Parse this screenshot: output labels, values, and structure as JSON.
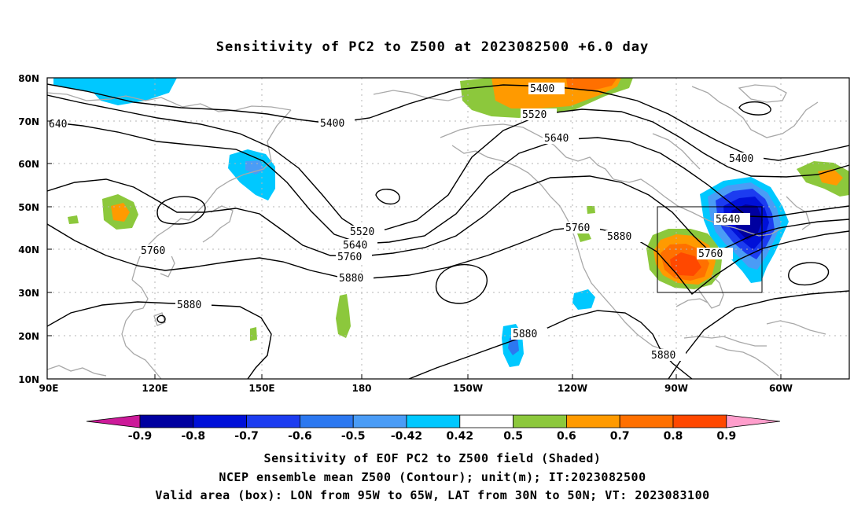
{
  "title": "Sensitivity of PC2 to Z500 at 2023082500 +6.0 day",
  "map": {
    "lat_labels": [
      "80N",
      "70N",
      "60N",
      "50N",
      "40N",
      "30N",
      "20N",
      "10N"
    ],
    "lon_labels": [
      "90E",
      "120E",
      "150E",
      "180",
      "150W",
      "120W",
      "90W",
      "60W"
    ],
    "contour_labels": [
      "640",
      "5400",
      "5400",
      "5520",
      "5640",
      "5400",
      "5760",
      "5520",
      "5640",
      "5760",
      "5880",
      "5760",
      "5880",
      "5640",
      "5760",
      "5880",
      "5880",
      "5880"
    ],
    "valid_box": {
      "lon_min": -95,
      "lon_max": -65,
      "lat_min": 30,
      "lat_max": 50
    }
  },
  "colorbar": {
    "colors": [
      "#cc1a99",
      "#0000a0",
      "#0010d8",
      "#1c3cf0",
      "#2c78f0",
      "#4a9cf6",
      "#00c8ff",
      "#ffffff",
      "#8cc83c",
      "#ff9a00",
      "#ff7000",
      "#ff4800",
      "#ff1800",
      "#ff9ecc"
    ],
    "labels": [
      "-0.9",
      "-0.8",
      "-0.7",
      "-0.6",
      "-0.5",
      "-0.42",
      "0.42",
      "0.5",
      "0.6",
      "0.7",
      "0.8",
      "0.9"
    ]
  },
  "captions": {
    "line1": "Sensitivity of EOF PC2 to Z500 field (Shaded)",
    "line2": "NCEP ensemble mean Z500 (Contour); unit(m); IT:2023082500",
    "line3": "Valid area (box): LON from 95W to 65W, LAT from 30N to 50N; VT: 2023083100"
  }
}
